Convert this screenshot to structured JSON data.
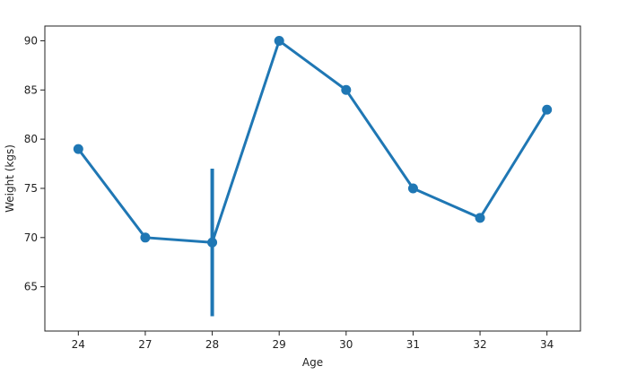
{
  "chart_data": {
    "type": "line",
    "title": "",
    "xlabel": "Age",
    "ylabel": "Weight (kgs)",
    "categories": [
      "24",
      "27",
      "28",
      "29",
      "30",
      "31",
      "32",
      "34"
    ],
    "values": [
      79,
      70,
      69.5,
      90,
      85,
      75,
      72,
      83
    ],
    "error_bars": [
      null,
      null,
      [
        62,
        77
      ],
      null,
      null,
      null,
      null,
      null
    ],
    "ylim": [
      60.5,
      91.5
    ],
    "yticks": [
      65,
      70,
      75,
      80,
      85,
      90
    ],
    "grid": false,
    "legend": "none",
    "color": "#1f77b4"
  }
}
